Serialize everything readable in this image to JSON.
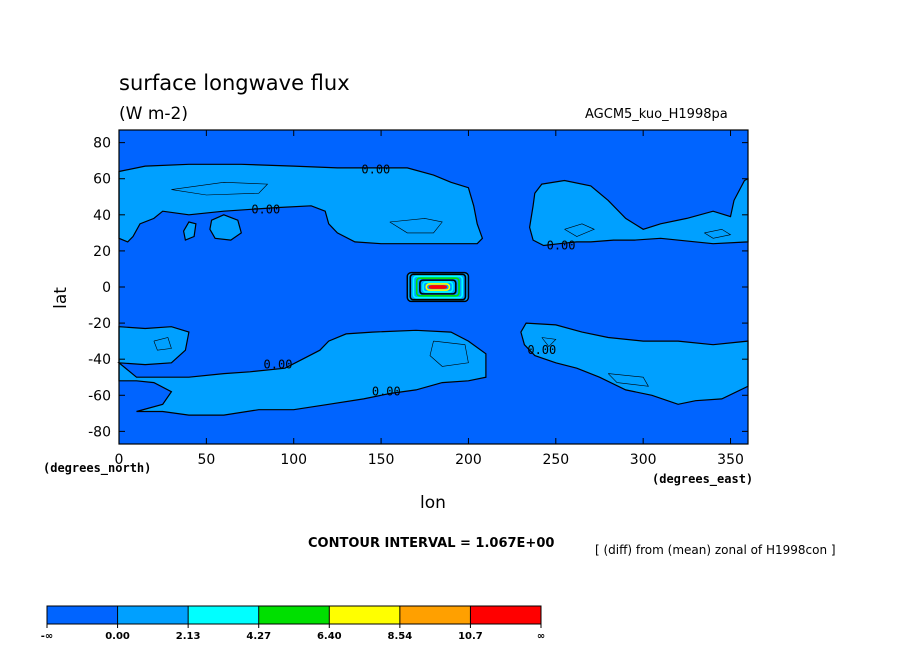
{
  "chart_data": {
    "type": "contour",
    "title": "surface longwave flux",
    "units": "(W m-2)",
    "model": "AGCM5_kuo_H1998pa",
    "xlabel": "lon",
    "ylabel": "lat",
    "x_unit_label": "(degrees_east)",
    "y_unit_label": "(degrees_north)",
    "xlim": [
      0,
      360
    ],
    "ylim": [
      -87,
      87
    ],
    "x_ticks": [
      0,
      50,
      100,
      150,
      200,
      250,
      300,
      350
    ],
    "y_ticks": [
      80,
      60,
      40,
      20,
      0,
      -20,
      -40,
      -60,
      -80
    ],
    "contour_interval_text": "CONTOUR INTERVAL = 1.067E+00",
    "note": "[ (diff) from (mean) zonal of H1998con ]",
    "contour_labels": [
      {
        "text": "0.00",
        "lon": 147,
        "lat": 65
      },
      {
        "text": "0.00",
        "lon": 84,
        "lat": 43
      },
      {
        "text": "0.00",
        "lon": 253,
        "lat": 23
      },
      {
        "text": "0.00",
        "lon": 91,
        "lat": -43
      },
      {
        "text": "0.00",
        "lon": 153,
        "lat": -58
      },
      {
        "text": "0.00",
        "lon": 242,
        "lat": -35
      }
    ],
    "colorbar": {
      "labels": [
        "-∞",
        "0.00",
        "2.13",
        "4.27",
        "6.40",
        "8.54",
        "10.7",
        "∞"
      ],
      "colors": [
        "#0064ff",
        "#00a0ff",
        "#00ffff",
        "#00e000",
        "#ffff00",
        "#ffa000",
        "#ff0000"
      ]
    },
    "regions": [
      {
        "name": "north-band-west",
        "level": "0.00 to 2.13",
        "points": [
          [
            0,
            64
          ],
          [
            15,
            67
          ],
          [
            40,
            68
          ],
          [
            70,
            68
          ],
          [
            100,
            67
          ],
          [
            125,
            66
          ],
          [
            145,
            66
          ],
          [
            165,
            66
          ],
          [
            180,
            62
          ],
          [
            190,
            58
          ],
          [
            200,
            55
          ],
          [
            203,
            45
          ],
          [
            205,
            35
          ],
          [
            208,
            27
          ],
          [
            205,
            24
          ],
          [
            190,
            24
          ],
          [
            175,
            24
          ],
          [
            160,
            24
          ],
          [
            150,
            24
          ],
          [
            135,
            25
          ],
          [
            125,
            30
          ],
          [
            120,
            35
          ],
          [
            118,
            42
          ],
          [
            110,
            45
          ],
          [
            90,
            44
          ],
          [
            60,
            42
          ],
          [
            40,
            40
          ],
          [
            25,
            42
          ],
          [
            20,
            38
          ],
          [
            12,
            35
          ],
          [
            8,
            28
          ],
          [
            5,
            25
          ],
          [
            0,
            27
          ]
        ]
      },
      {
        "name": "north-band-east",
        "level": "0.00 to 2.13",
        "points": [
          [
            242,
            57
          ],
          [
            255,
            59
          ],
          [
            270,
            56
          ],
          [
            280,
            48
          ],
          [
            290,
            38
          ],
          [
            300,
            32
          ],
          [
            310,
            35
          ],
          [
            325,
            38
          ],
          [
            340,
            42
          ],
          [
            350,
            39
          ],
          [
            352,
            48
          ],
          [
            358,
            59
          ],
          [
            360,
            60
          ],
          [
            360,
            25
          ],
          [
            340,
            24
          ],
          [
            310,
            27
          ],
          [
            295,
            26
          ],
          [
            283,
            26
          ],
          [
            270,
            25
          ],
          [
            262,
            25
          ],
          [
            252,
            24
          ],
          [
            243,
            23
          ],
          [
            237,
            26
          ],
          [
            235,
            33
          ],
          [
            237,
            45
          ],
          [
            238,
            52
          ]
        ]
      },
      {
        "name": "island-1",
        "level": "0.00 to 2.13",
        "points": [
          [
            37,
            31
          ],
          [
            40,
            36
          ],
          [
            44,
            35
          ],
          [
            43,
            28
          ],
          [
            38,
            26
          ]
        ]
      },
      {
        "name": "island-2",
        "level": "0.00 to 2.13",
        "points": [
          [
            53,
            37
          ],
          [
            60,
            40
          ],
          [
            68,
            37
          ],
          [
            70,
            30
          ],
          [
            64,
            26
          ],
          [
            55,
            27
          ],
          [
            52,
            32
          ]
        ]
      },
      {
        "name": "south-band-west",
        "level": "0.00 to 2.13",
        "points": [
          [
            0,
            -22
          ],
          [
            15,
            -23
          ],
          [
            30,
            -22
          ],
          [
            40,
            -25
          ],
          [
            38,
            -35
          ],
          [
            30,
            -42
          ],
          [
            15,
            -43
          ],
          [
            0,
            -42
          ],
          [
            10,
            -50
          ],
          [
            40,
            -50
          ],
          [
            60,
            -48
          ],
          [
            75,
            -47
          ],
          [
            95,
            -45
          ],
          [
            105,
            -40
          ],
          [
            115,
            -35
          ],
          [
            120,
            -30
          ],
          [
            130,
            -26
          ],
          [
            145,
            -25
          ],
          [
            170,
            -24
          ],
          [
            190,
            -25
          ],
          [
            200,
            -30
          ],
          [
            210,
            -37
          ],
          [
            210,
            -50
          ],
          [
            200,
            -52
          ],
          [
            185,
            -53
          ],
          [
            170,
            -57
          ],
          [
            155,
            -59
          ],
          [
            140,
            -62
          ],
          [
            120,
            -65
          ],
          [
            100,
            -68
          ],
          [
            80,
            -68
          ],
          [
            60,
            -71
          ],
          [
            40,
            -71
          ],
          [
            25,
            -69
          ],
          [
            10,
            -69
          ],
          [
            25,
            -65
          ],
          [
            30,
            -58
          ],
          [
            20,
            -53
          ],
          [
            10,
            -52
          ],
          [
            0,
            -52
          ]
        ]
      },
      {
        "name": "south-band-east",
        "level": "0.00 to 2.13",
        "points": [
          [
            233,
            -20
          ],
          [
            250,
            -21
          ],
          [
            265,
            -25
          ],
          [
            280,
            -28
          ],
          [
            300,
            -30
          ],
          [
            320,
            -30
          ],
          [
            340,
            -32
          ],
          [
            360,
            -30
          ],
          [
            360,
            -55
          ],
          [
            345,
            -62
          ],
          [
            330,
            -63
          ],
          [
            320,
            -65
          ],
          [
            305,
            -60
          ],
          [
            290,
            -57
          ],
          [
            275,
            -50
          ],
          [
            262,
            -45
          ],
          [
            250,
            -42
          ],
          [
            238,
            -38
          ],
          [
            232,
            -32
          ],
          [
            230,
            -25
          ]
        ]
      }
    ],
    "feature_box": {
      "lon": [
        165,
        200
      ],
      "lat": [
        -8,
        8
      ],
      "ring_colors": [
        "#000000",
        "#00ffff",
        "#00e000",
        "#000000",
        "#00ffff",
        "#ffff00",
        "#ff0000"
      ]
    },
    "thin_contours": [
      {
        "points": [
          [
            30,
            54
          ],
          [
            60,
            58
          ],
          [
            85,
            57
          ],
          [
            80,
            52
          ],
          [
            50,
            51
          ],
          [
            30,
            54
          ]
        ]
      },
      {
        "points": [
          [
            155,
            36
          ],
          [
            175,
            38
          ],
          [
            185,
            36
          ],
          [
            180,
            30
          ],
          [
            165,
            30
          ],
          [
            155,
            36
          ]
        ]
      },
      {
        "points": [
          [
            255,
            32
          ],
          [
            265,
            35
          ],
          [
            272,
            32
          ],
          [
            262,
            28
          ],
          [
            255,
            32
          ]
        ]
      },
      {
        "points": [
          [
            335,
            30
          ],
          [
            345,
            32
          ],
          [
            350,
            29
          ],
          [
            340,
            27
          ],
          [
            335,
            30
          ]
        ]
      },
      {
        "points": [
          [
            20,
            -30
          ],
          [
            28,
            -28
          ],
          [
            30,
            -34
          ],
          [
            22,
            -35
          ],
          [
            20,
            -30
          ]
        ]
      },
      {
        "points": [
          [
            180,
            -30
          ],
          [
            198,
            -32
          ],
          [
            200,
            -42
          ],
          [
            185,
            -44
          ],
          [
            178,
            -38
          ],
          [
            180,
            -30
          ]
        ]
      },
      {
        "points": [
          [
            242,
            -28
          ],
          [
            250,
            -29
          ],
          [
            246,
            -33
          ],
          [
            242,
            -28
          ]
        ]
      },
      {
        "points": [
          [
            280,
            -48
          ],
          [
            300,
            -50
          ],
          [
            303,
            -55
          ],
          [
            285,
            -53
          ],
          [
            280,
            -48
          ]
        ]
      }
    ]
  }
}
